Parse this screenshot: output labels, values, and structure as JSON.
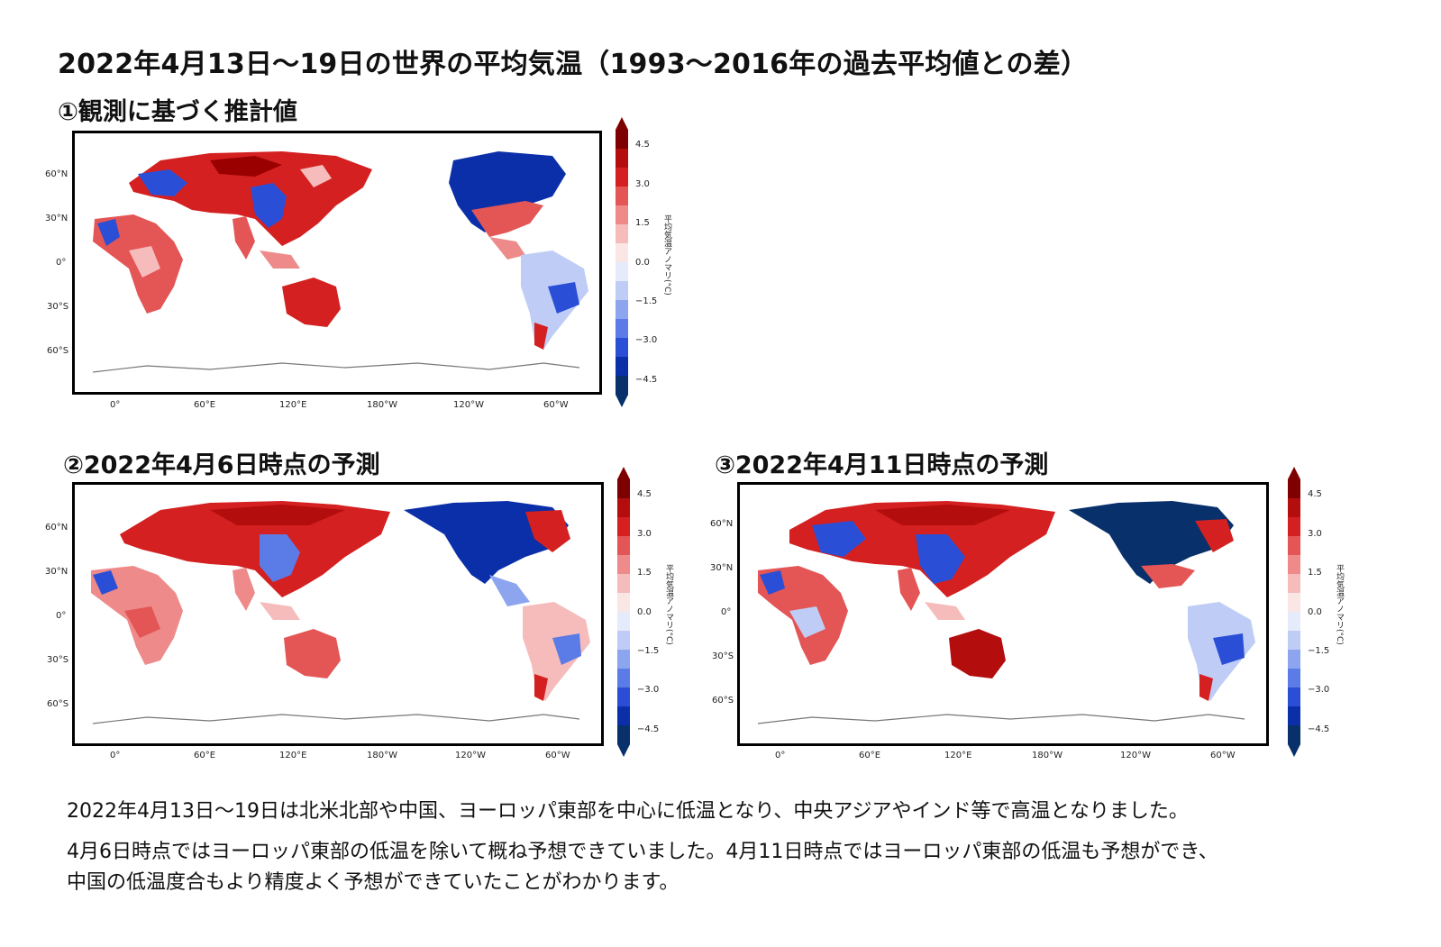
{
  "title": "2022年4月13日～19日の世界の平均気温（1993～2016年の過去平均値との差）",
  "panels": [
    {
      "label": "①観測に基づく推計値"
    },
    {
      "label": "②2022年4月6日時点の予測"
    },
    {
      "label": "③2022年4月11日時点の予測"
    }
  ],
  "axis": {
    "lon_ticks": [
      "0°",
      "60°E",
      "120°E",
      "180°W",
      "120°W",
      "60°W"
    ],
    "lat_ticks": [
      "60°N",
      "30°N",
      "0°",
      "30°S",
      "60°S"
    ]
  },
  "colorbar": {
    "label": "平均気温アノマリ(°C)",
    "ticks": [
      "4.5",
      "3.0",
      "1.5",
      "0.0",
      "−1.5",
      "−3.0",
      "−4.5"
    ],
    "colors": [
      "#08306b",
      "#0b2fa8",
      "#2a4fd6",
      "#5b7be6",
      "#8da5ef",
      "#bfcdf6",
      "#e6ebfb",
      "#fbe6e6",
      "#f6bcbc",
      "#ee8a8a",
      "#e45555",
      "#d42020",
      "#b30d0d",
      "#7f0000"
    ]
  },
  "description": [
    "2022年4月13日～19日は北米北部や中国、ヨーロッパ東部を中心に低温となり、中央アジアやインド等で高温となりました。",
    "4月6日時点ではヨーロッパ東部の低温を除いて概ね予想できていました。4月11日時点ではヨーロッパ東部の低温も予想ができ、",
    "中国の低温度合もより精度よく予想ができていたことがわかります。"
  ]
}
